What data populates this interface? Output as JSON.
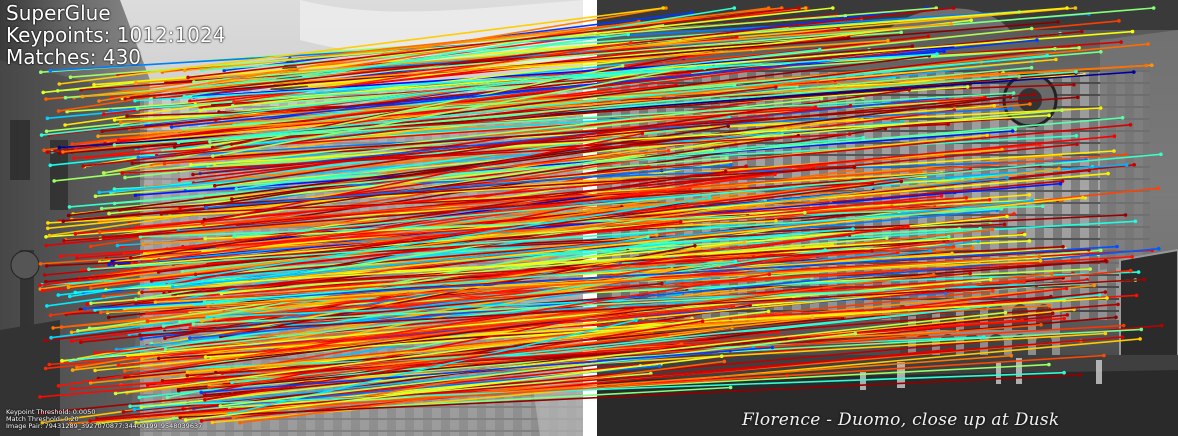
{
  "header": {
    "method": "SuperGlue",
    "keypoints": "Keypoints: 1012:1024",
    "matches": "Matches: 430"
  },
  "footer": {
    "keypoint_threshold": "Keypoint Threshold: 0.0050",
    "match_threshold": "Match Threshold: 0.20",
    "image_pair": "Image Pair: 79431289_3927070877:34400199_9548039637"
  },
  "right_image": {
    "caption": "Florence - Duomo, close up at Dusk"
  },
  "colors": {
    "divider": "#ffffff",
    "match_low": "#1e5cff",
    "match_high": "#e00000"
  },
  "match_count": 430
}
